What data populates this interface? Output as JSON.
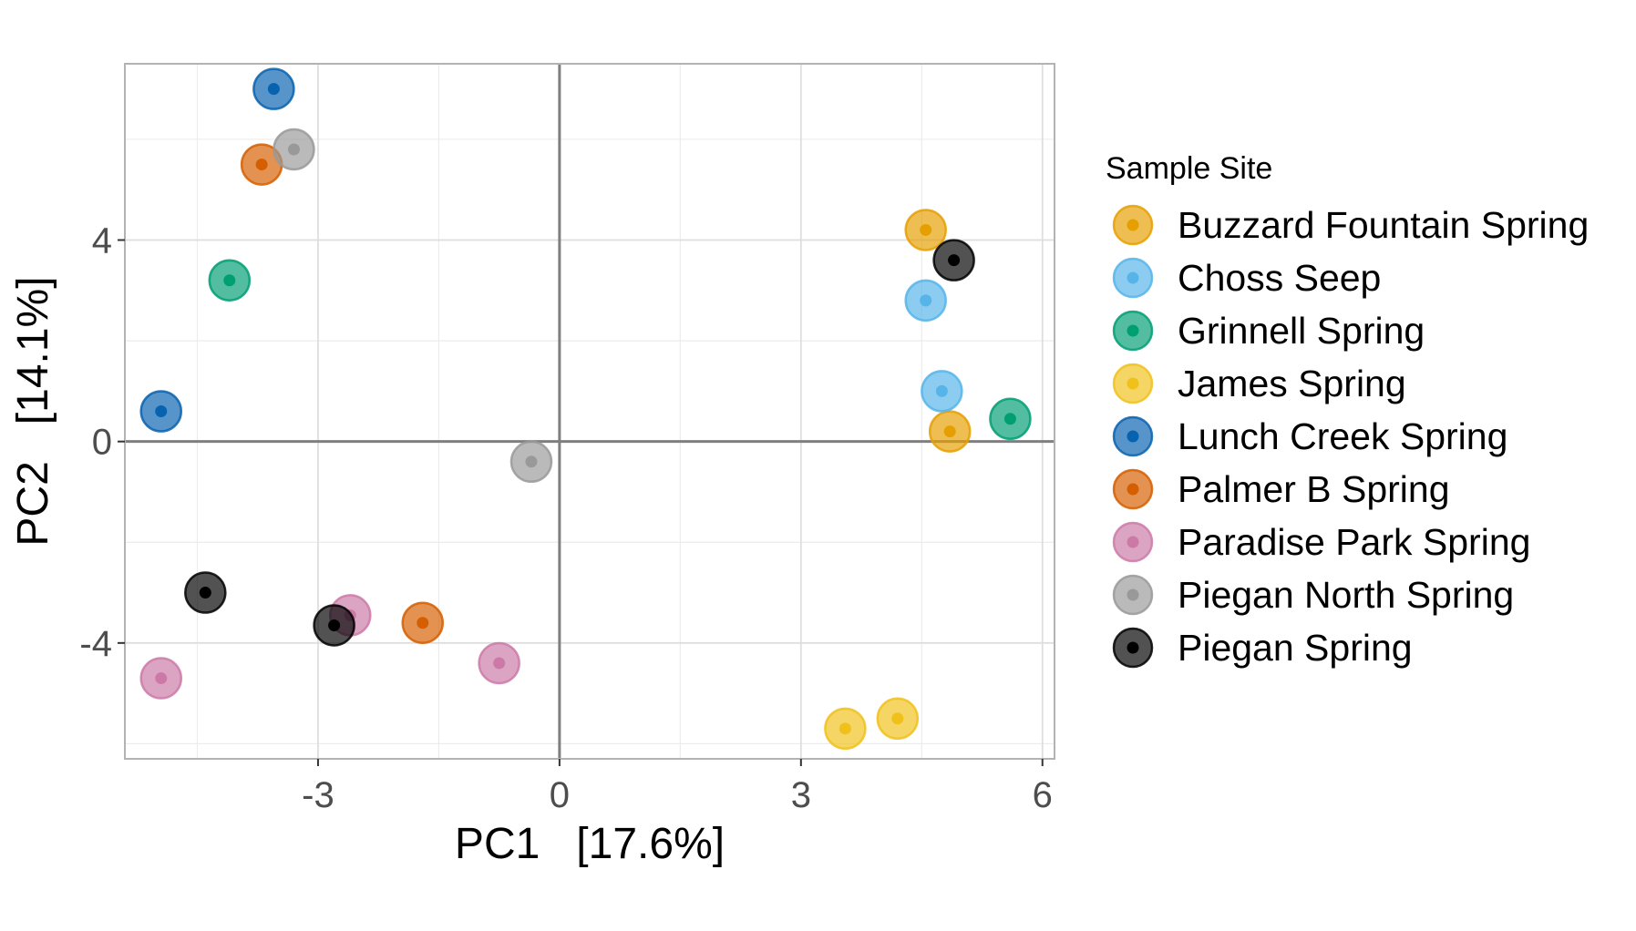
{
  "chart_data": {
    "type": "scatter",
    "xlabel": "PC1   [17.6%]",
    "ylabel": "PC2   [14.1%]",
    "xlim": [
      -5.4,
      6.15
    ],
    "ylim": [
      -6.3,
      7.5
    ],
    "x_ticks": [
      -3,
      0,
      3,
      6
    ],
    "y_ticks": [
      -4,
      0,
      4
    ],
    "x_tick_labels": [
      "-3",
      "0",
      "3",
      "6"
    ],
    "y_tick_labels": [
      "-4",
      "0",
      "4"
    ],
    "x_minor_ticks": [
      -4.5,
      -1.5,
      1.5,
      4.5
    ],
    "y_minor_ticks": [
      -6,
      -2,
      2,
      6
    ],
    "grid": true,
    "zero_lines": true,
    "legend_title": "Sample Site",
    "legend_position": "right",
    "series": [
      {
        "name": "Buzzard Fountain Spring",
        "color": "#E69F00",
        "points": [
          [
            4.55,
            4.2
          ],
          [
            4.85,
            0.2
          ]
        ]
      },
      {
        "name": "Choss Seep",
        "color": "#56B4E9",
        "points": [
          [
            4.55,
            2.8
          ],
          [
            4.75,
            1.0
          ]
        ]
      },
      {
        "name": "Grinnell Spring",
        "color": "#009E73",
        "points": [
          [
            -4.1,
            3.2
          ],
          [
            5.6,
            0.45
          ]
        ]
      },
      {
        "name": "James Spring",
        "color": "#F0C11B",
        "points": [
          [
            3.55,
            -5.7
          ],
          [
            4.2,
            -5.5
          ]
        ]
      },
      {
        "name": "Lunch Creek Spring",
        "color": "#0762AF",
        "points": [
          [
            -3.55,
            7.0
          ],
          [
            -4.95,
            0.6
          ]
        ]
      },
      {
        "name": "Palmer B Spring",
        "color": "#D55E00",
        "points": [
          [
            -3.7,
            5.5
          ],
          [
            -1.7,
            -3.6
          ]
        ]
      },
      {
        "name": "Paradise Park Spring",
        "color": "#CC79A7",
        "points": [
          [
            -2.6,
            -3.45
          ],
          [
            -0.75,
            -4.4
          ],
          [
            -4.95,
            -4.7
          ]
        ]
      },
      {
        "name": "Piegan North Spring",
        "color": "#999999",
        "points": [
          [
            -3.3,
            5.8
          ],
          [
            -0.35,
            -0.4
          ]
        ]
      },
      {
        "name": "Piegan Spring",
        "color": "#000000",
        "points": [
          [
            4.9,
            3.6
          ],
          [
            -4.4,
            -3.0
          ],
          [
            -2.8,
            -3.65
          ]
        ]
      }
    ]
  }
}
